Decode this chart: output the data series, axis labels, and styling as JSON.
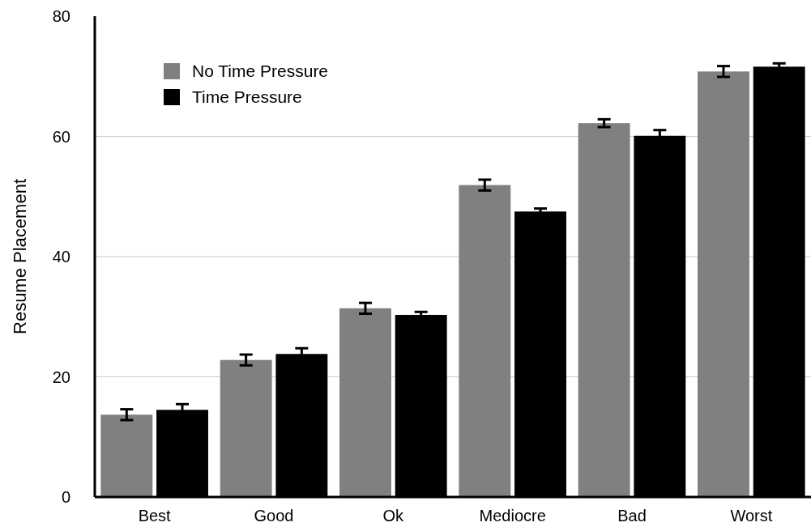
{
  "chart_data": {
    "type": "bar",
    "ylabel": "Resume Placement",
    "categories": [
      "Best",
      "Good",
      "Ok",
      "Mediocre",
      "Bad",
      "Worst"
    ],
    "series": [
      {
        "name": "No Time Pressure",
        "color": "#808080",
        "values": [
          13.7,
          22.8,
          31.4,
          51.9,
          62.2,
          70.8
        ],
        "errors": [
          0.9,
          0.9,
          0.9,
          0.9,
          0.65,
          0.9
        ]
      },
      {
        "name": "Time Pressure",
        "color": "#000000",
        "values": [
          14.5,
          23.8,
          30.3,
          47.5,
          60.1,
          71.6
        ],
        "errors": [
          0.95,
          0.95,
          0.5,
          0.5,
          0.95,
          0.55
        ]
      }
    ],
    "ylim": [
      0,
      80
    ],
    "yticks": [
      0,
      20,
      40,
      60,
      80
    ],
    "grid": "y",
    "legend": "top left"
  }
}
